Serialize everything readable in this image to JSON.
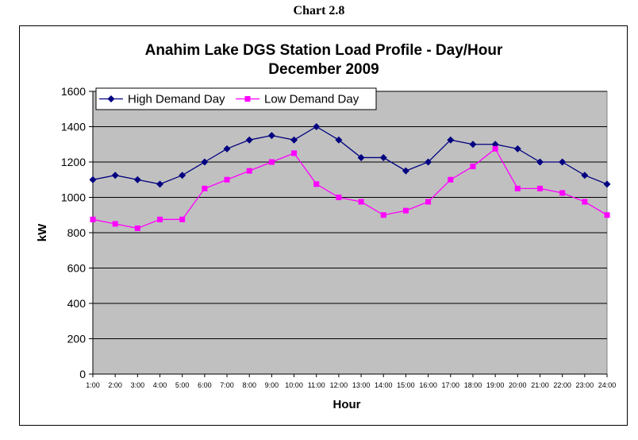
{
  "caption": "Chart 2.8",
  "chart_data": {
    "type": "line",
    "title": [
      "Anahim Lake DGS Station Load Profile - Day/Hour",
      "December 2009"
    ],
    "xlabel": "Hour",
    "ylabel": "kW",
    "ylim": [
      0,
      1600
    ],
    "yticks": [
      0,
      200,
      400,
      600,
      800,
      1000,
      1200,
      1400,
      1600
    ],
    "grid": true,
    "legend": "top-left",
    "categories": [
      "1:00",
      "2:00",
      "3:00",
      "4:00",
      "5:00",
      "6:00",
      "7:00",
      "8:00",
      "9:00",
      "10:00",
      "11:00",
      "12:00",
      "13:00",
      "14:00",
      "15:00",
      "16:00",
      "17:00",
      "18:00",
      "19:00",
      "20:00",
      "21:00",
      "22:00",
      "23:00",
      "24:00"
    ],
    "series": [
      {
        "name": "High Demand Day",
        "color": "#000080",
        "marker": "diamond",
        "values": [
          1100,
          1125,
          1100,
          1075,
          1125,
          1200,
          1275,
          1325,
          1350,
          1325,
          1400,
          1325,
          1225,
          1225,
          1150,
          1200,
          1325,
          1300,
          1300,
          1275,
          1200,
          1200,
          1125,
          1075
        ]
      },
      {
        "name": "Low Demand Day",
        "color": "#ff00ff",
        "marker": "square",
        "values": [
          875,
          850,
          825,
          875,
          875,
          1050,
          1100,
          1150,
          1200,
          1250,
          1075,
          1000,
          975,
          900,
          925,
          975,
          1100,
          1175,
          1275,
          1050,
          1050,
          1025,
          975,
          900
        ]
      }
    ],
    "plot_background": "#c0c0c0"
  }
}
